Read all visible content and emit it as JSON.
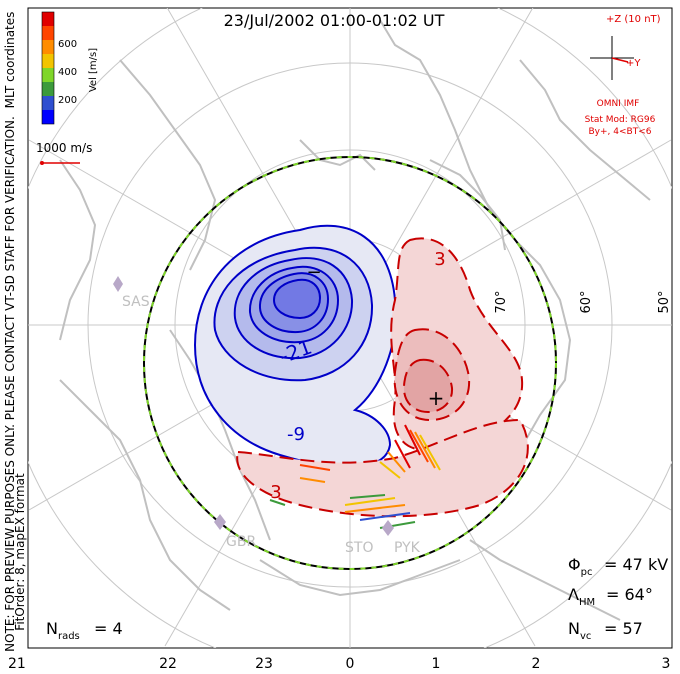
{
  "title": "23/Jul/2002 01:00-01:02 UT",
  "coords_label": "MLT coordinates",
  "colorbar": {
    "label": "Vel [m/s]",
    "ticks": [
      "600",
      "400",
      "200"
    ],
    "colors": [
      "#0000ff",
      "#2f4fd0",
      "#3c9a3c",
      "#7fd62a",
      "#f2c400",
      "#ff8c00",
      "#ff4500",
      "#e00000"
    ]
  },
  "reference_vector_label": "1000 m/s",
  "imf": {
    "scale_label": "+Z (10 nT)",
    "y_label": "+Y",
    "source": "OMNI IMF",
    "model": "Stat Mod: RG96",
    "condition": "By+, 4<BT<6"
  },
  "side_note_1": "NOTE: FOR PREVIEW PURPOSES ONLY. PLEASE CONTACT VT-SD STAFF FOR VERIFICATION.",
  "side_note_2": "FitOrder: 8, mapEX format",
  "latitude_labels": [
    "70°",
    "60°",
    "50°"
  ],
  "contour_labels": {
    "neg_min": "−",
    "neg_a": "-21",
    "neg_b": "-9",
    "pos_min": "+",
    "pos_a": "3",
    "pos_b": "3"
  },
  "stations": [
    "SAS",
    "GBR",
    "STO",
    "PYK"
  ],
  "stats": {
    "phi_sym": "Φ",
    "phi_sub": "pc",
    "phi_val": "= 47 kV",
    "lambda_sym": "Λ",
    "lambda_sub": "HM",
    "lambda_val": "= 64°",
    "nvc_sym": "N",
    "nvc_sub": "vc",
    "nvc_val": "= 57",
    "nrads_sym": "N",
    "nrads_sub": "rads",
    "nrads_val": "= 4"
  },
  "mlt_axis": [
    "21",
    "22",
    "23",
    "0",
    "1",
    "2",
    "3"
  ],
  "colors": {
    "negative_contour": "#0000c8",
    "positive_contour": "#c80000",
    "imf_text": "#e00000",
    "coastline": "#c0c0c0",
    "grid": "#c8c8c8",
    "station": "#b8a8c8"
  }
}
